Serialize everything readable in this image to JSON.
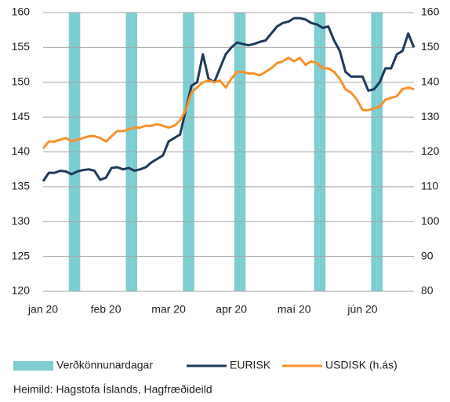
{
  "chart_data": {
    "type": "line",
    "categories": [
      "jan 20",
      null,
      null,
      null,
      null,
      null,
      null,
      null,
      null,
      null,
      null,
      "feb 20",
      null,
      null,
      null,
      null,
      null,
      null,
      null,
      null,
      null,
      null,
      "mar 20",
      null,
      null,
      null,
      null,
      null,
      null,
      null,
      null,
      null,
      null,
      "apr 20",
      null,
      null,
      null,
      null,
      null,
      null,
      null,
      null,
      null,
      null,
      "maí 20",
      null,
      null,
      null,
      null,
      null,
      null,
      null,
      null,
      null,
      null,
      null,
      "jún 20",
      null,
      null,
      null,
      null,
      null,
      null,
      null,
      null,
      null
    ],
    "series": [
      {
        "name": "Verðkönnunardagar",
        "type": "bar",
        "color": "#7ecdd1",
        "values": [
          null,
          null,
          null,
          null,
          null,
          160,
          160,
          null,
          null,
          null,
          null,
          null,
          null,
          null,
          null,
          160,
          160,
          null,
          null,
          null,
          null,
          null,
          null,
          null,
          null,
          160,
          160,
          null,
          null,
          null,
          null,
          null,
          null,
          null,
          160,
          160,
          null,
          null,
          null,
          null,
          null,
          null,
          null,
          null,
          null,
          null,
          null,
          null,
          160,
          160,
          null,
          null,
          null,
          null,
          null,
          null,
          null,
          null,
          160,
          160,
          null,
          null,
          null,
          null,
          null,
          null
        ]
      },
      {
        "name": "EURISK",
        "type": "line",
        "color": "#1f3a5a",
        "values": [
          135.8,
          137,
          137,
          137.3,
          137.2,
          136.8,
          137.2,
          137.4,
          137.5,
          137.3,
          136,
          136.3,
          137.7,
          137.8,
          137.5,
          137.7,
          137.3,
          137.5,
          137.8,
          138.5,
          139,
          139.5,
          141.5,
          142,
          142.5,
          146,
          149.5,
          150,
          154,
          150.5,
          150,
          152,
          154,
          155,
          155.7,
          155.5,
          155.3,
          155.5,
          155.8,
          156,
          157,
          158,
          158.5,
          158.7,
          159.2,
          159.2,
          159,
          158.5,
          158.3,
          157.8,
          158,
          156,
          154.5,
          151.5,
          150.8,
          150.8,
          150.8,
          148.8,
          149,
          150,
          152,
          152,
          154,
          154.5,
          157,
          155
        ]
      },
      {
        "name": "USDISK (h.ás)",
        "type": "line",
        "axis": "y2",
        "color": "#f5922b",
        "values": [
          121,
          123,
          123,
          123.5,
          124,
          123,
          123.5,
          124,
          124.5,
          124.5,
          124,
          123,
          124.5,
          126,
          126,
          126.5,
          127,
          127,
          127.5,
          127.5,
          128,
          127.5,
          127,
          127.5,
          129,
          132,
          137,
          138.5,
          140,
          140.5,
          140,
          140.5,
          138.5,
          141,
          143,
          143,
          142.5,
          142.5,
          142,
          143,
          144,
          145.5,
          146,
          147,
          146,
          147,
          145,
          146,
          145.5,
          144,
          144,
          143,
          141,
          138,
          137,
          135,
          132,
          132,
          132.5,
          133,
          135,
          135.5,
          136,
          138,
          138.5,
          138
        ]
      }
    ],
    "ylim": [
      120,
      160
    ],
    "yticks": [
      120,
      125,
      130,
      135,
      140,
      145,
      150,
      155,
      160
    ],
    "y2lim": [
      80,
      160
    ],
    "y2ticks": [
      80,
      90,
      100,
      110,
      120,
      130,
      140,
      150,
      160
    ],
    "grid": true,
    "source": "Heimild: Hagstofa Íslands, Hagfræðideild"
  }
}
